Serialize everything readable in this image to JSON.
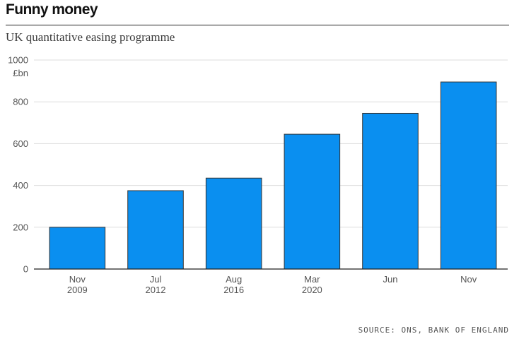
{
  "chart_data": {
    "type": "bar",
    "title": "Funny money",
    "subtitle": "UK quantitative easing programme",
    "ylabel": "£bn",
    "xlabel": "",
    "ylim": [
      0,
      1000
    ],
    "yticks": [
      0,
      200,
      400,
      600,
      800,
      1000
    ],
    "grid": true,
    "categories": [
      [
        "Nov",
        "2009"
      ],
      [
        "Jul",
        "2012"
      ],
      [
        "Aug",
        "2016"
      ],
      [
        "Mar",
        "2020"
      ],
      [
        "Jun",
        ""
      ],
      [
        "Nov",
        ""
      ]
    ],
    "values": [
      200,
      375,
      435,
      645,
      745,
      895
    ],
    "bar_color": "#0a8ff0",
    "bar_edge_color": "#333333",
    "source": "SOURCE: ONS, BANK OF ENGLAND"
  }
}
